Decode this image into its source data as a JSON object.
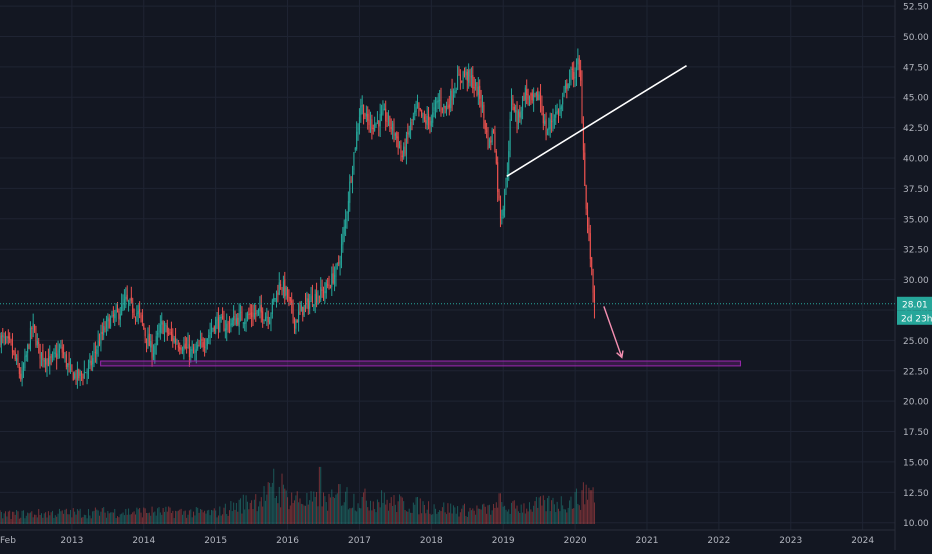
{
  "chart_data": {
    "type": "candlestick",
    "y_axis": {
      "position": "right",
      "ticks": [
        "10.00",
        "12.50",
        "15.00",
        "17.50",
        "20.00",
        "22.50",
        "25.00",
        "27.50",
        "30.00",
        "32.50",
        "35.00",
        "37.50",
        "40.00",
        "42.50",
        "45.00",
        "47.50",
        "50.00",
        "52.50"
      ],
      "range": [
        9.4,
        53.0
      ]
    },
    "x_axis": {
      "ticks": [
        {
          "label": "Feb",
          "t": 2012.12
        },
        {
          "label": "2013",
          "t": 2013.0
        },
        {
          "label": "2014",
          "t": 2014.0
        },
        {
          "label": "2015",
          "t": 2015.0
        },
        {
          "label": "2016",
          "t": 2016.0
        },
        {
          "label": "2017",
          "t": 2017.0
        },
        {
          "label": "2018",
          "t": 2018.0
        },
        {
          "label": "2019",
          "t": 2019.0
        },
        {
          "label": "2020",
          "t": 2020.0
        },
        {
          "label": "2021",
          "t": 2021.0
        },
        {
          "label": "2022",
          "t": 2022.0
        },
        {
          "label": "2023",
          "t": 2023.0
        },
        {
          "label": "2024",
          "t": 2024.0
        }
      ],
      "range": [
        2012.0,
        2024.45
      ]
    },
    "grid": true,
    "price_key_points": [
      [
        2012.0,
        25.2
      ],
      [
        2012.15,
        24.5
      ],
      [
        2012.3,
        21.8
      ],
      [
        2012.45,
        26.2
      ],
      [
        2012.55,
        24.0
      ],
      [
        2012.7,
        23.2
      ],
      [
        2012.85,
        24.3
      ],
      [
        2012.98,
        22.3
      ],
      [
        2013.1,
        22.0
      ],
      [
        2013.25,
        22.8
      ],
      [
        2013.35,
        24.5
      ],
      [
        2013.5,
        26.5
      ],
      [
        2013.62,
        27.0
      ],
      [
        2013.75,
        28.2
      ],
      [
        2013.85,
        27.6
      ],
      [
        2013.95,
        27.0
      ],
      [
        2014.02,
        25.5
      ],
      [
        2014.12,
        24.0
      ],
      [
        2014.25,
        26.2
      ],
      [
        2014.4,
        25.2
      ],
      [
        2014.55,
        24.5
      ],
      [
        2014.7,
        23.8
      ],
      [
        2014.85,
        25.0
      ],
      [
        2015.0,
        26.5
      ],
      [
        2015.15,
        26.2
      ],
      [
        2015.3,
        26.8
      ],
      [
        2015.45,
        27.0
      ],
      [
        2015.6,
        27.3
      ],
      [
        2015.75,
        27.0
      ],
      [
        2015.82,
        28.5
      ],
      [
        2015.9,
        29.8
      ],
      [
        2016.0,
        28.6
      ],
      [
        2016.1,
        26.5
      ],
      [
        2016.2,
        27.5
      ],
      [
        2016.35,
        28.5
      ],
      [
        2016.5,
        29.0
      ],
      [
        2016.6,
        29.8
      ],
      [
        2016.7,
        31.0
      ],
      [
        2016.8,
        34.5
      ],
      [
        2016.88,
        38.5
      ],
      [
        2016.95,
        41.5
      ],
      [
        2017.02,
        44.5
      ],
      [
        2017.1,
        43.0
      ],
      [
        2017.2,
        42.8
      ],
      [
        2017.35,
        43.5
      ],
      [
        2017.5,
        42.0
      ],
      [
        2017.6,
        40.0
      ],
      [
        2017.7,
        42.5
      ],
      [
        2017.8,
        44.0
      ],
      [
        2017.9,
        43.0
      ],
      [
        2018.0,
        43.2
      ],
      [
        2018.1,
        44.8
      ],
      [
        2018.2,
        44.0
      ],
      [
        2018.35,
        46.2
      ],
      [
        2018.45,
        47.0
      ],
      [
        2018.55,
        46.5
      ],
      [
        2018.68,
        45.0
      ],
      [
        2018.8,
        41.0
      ],
      [
        2018.87,
        42.5
      ],
      [
        2018.93,
        37.0
      ],
      [
        2018.97,
        35.0
      ],
      [
        2019.05,
        38.5
      ],
      [
        2019.12,
        45.0
      ],
      [
        2019.2,
        43.0
      ],
      [
        2019.3,
        45.5
      ],
      [
        2019.4,
        44.5
      ],
      [
        2019.5,
        45.2
      ],
      [
        2019.6,
        42.0
      ],
      [
        2019.7,
        43.5
      ],
      [
        2019.8,
        44.0
      ],
      [
        2019.9,
        46.5
      ],
      [
        2020.0,
        47.0
      ],
      [
        2020.04,
        47.8
      ],
      [
        2020.08,
        46.0
      ],
      [
        2020.12,
        40.0
      ],
      [
        2020.16,
        35.0
      ],
      [
        2020.2,
        33.0
      ],
      [
        2020.24,
        29.5
      ],
      [
        2020.28,
        27.6
      ]
    ],
    "volume": {
      "scale_max": 20.0,
      "profile_key_points": [
        [
          2012.0,
          1.5
        ],
        [
          2013.0,
          1.8
        ],
        [
          2014.0,
          2.0
        ],
        [
          2015.0,
          1.8
        ],
        [
          2015.8,
          5.0
        ],
        [
          2016.3,
          3.6
        ],
        [
          2017.0,
          4.0
        ],
        [
          2017.8,
          3.0
        ],
        [
          2018.5,
          2.2
        ],
        [
          2019.0,
          2.5
        ],
        [
          2019.9,
          3.5
        ],
        [
          2020.3,
          5.5
        ]
      ],
      "spikes": [
        {
          "t": 2015.8,
          "v": 9.0
        },
        {
          "t": 2015.92,
          "v": 8.2
        },
        {
          "t": 2016.45,
          "v": 9.3
        },
        {
          "t": 2016.72,
          "v": 6.5
        },
        {
          "t": 2016.82,
          "v": 6.0
        },
        {
          "t": 2017.3,
          "v": 5.5
        },
        {
          "t": 2018.95,
          "v": 5.0
        },
        {
          "t": 2020.15,
          "v": 6.4
        },
        {
          "t": 2020.22,
          "v": 5.5
        }
      ]
    },
    "last_price": {
      "value": "28.01",
      "countdown": "2d 23h",
      "price": 28.01
    },
    "support_zone": {
      "t_start": 2013.4,
      "t_end": 2022.3,
      "y_low": 22.9,
      "y_high": 23.3
    },
    "trendline": {
      "t1": 2019.05,
      "y1": 38.5,
      "t2": 2021.55,
      "y2": 47.6
    },
    "projection_arrow": {
      "t1": 2020.4,
      "y1": 27.8,
      "t2": 2020.65,
      "y2": 23.6
    },
    "colors": {
      "up": "#26a69a",
      "down": "#ef5350",
      "background": "#131722",
      "grid": "#1f2433",
      "axis_text": "#b2b5be",
      "support": "#9c27b0",
      "trendline": "#ffffff",
      "projection": "#f48fb1",
      "last_price": "#26a69a"
    }
  }
}
